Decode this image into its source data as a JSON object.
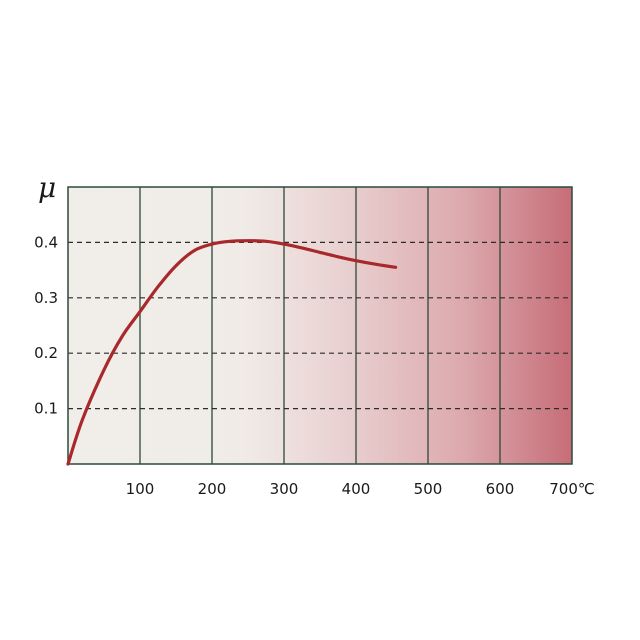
{
  "chart_data": {
    "type": "line",
    "title": "",
    "xlabel": "",
    "ylabel": "μ",
    "x_unit": "℃",
    "xlim": [
      0,
      700
    ],
    "ylim": [
      0,
      0.5
    ],
    "x_ticks": [
      100,
      200,
      300,
      400,
      500,
      600,
      700
    ],
    "x_tick_labels": [
      "100",
      "200",
      "300",
      "400",
      "500",
      "600",
      "700℃"
    ],
    "y_ticks": [
      0.1,
      0.2,
      0.3,
      0.4
    ],
    "y_tick_labels": [
      "0.1",
      "0.2",
      "0.3",
      "0.4"
    ],
    "grid": {
      "vertical": "solid",
      "horizontal": "dashed"
    },
    "background": "white-to-red gradient (left to right)",
    "series": [
      {
        "color": "#a8282b",
        "x": [
          0,
          20,
          50,
          75,
          100,
          125,
          150,
          175,
          200,
          225,
          250,
          275,
          300,
          325,
          350,
          375,
          400,
          430,
          455
        ],
        "y": [
          0.0,
          0.08,
          0.17,
          0.23,
          0.275,
          0.32,
          0.358,
          0.385,
          0.397,
          0.402,
          0.403,
          0.402,
          0.397,
          0.39,
          0.382,
          0.374,
          0.367,
          0.36,
          0.355
        ]
      }
    ]
  }
}
